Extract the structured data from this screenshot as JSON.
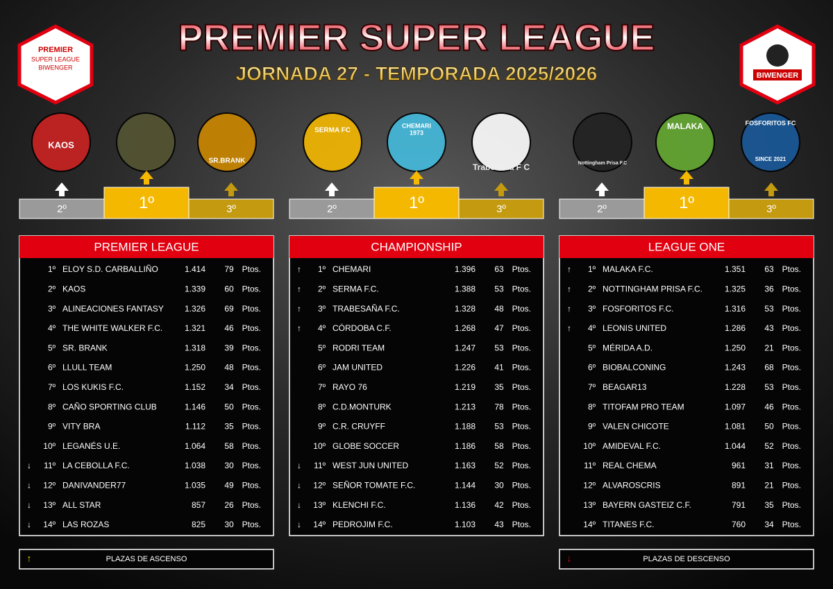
{
  "header": {
    "title": "PREMIER SUPER LEAGUE",
    "subtitle": "JORNADA 27 - TEMPORADA 2025/2026"
  },
  "corner_logos": {
    "left": [
      "PREMIER",
      "SUPER LEAGUE",
      "BIWENGER"
    ],
    "right": "BIWENGER"
  },
  "team_logos": [
    "KAOS",
    "SR.BRANK",
    "SERMA FC",
    "CHEMARI",
    "1973",
    "Trabesaña F C",
    "Nottingham Prisa F.C",
    "MALAKA",
    "FOSFORITOS FC",
    "SINCE 2021"
  ],
  "podium": [
    "2º",
    "1º",
    "3º"
  ],
  "unit": "Ptos.",
  "tables": [
    {
      "title": "PREMIER LEAGUE",
      "rows": [
        {
          "pos": "1º",
          "team": "ELOY S.D. CARBALLIÑO",
          "score": "1.414",
          "points": 79
        },
        {
          "pos": "2º",
          "team": "KAOS",
          "score": "1.339",
          "points": 60
        },
        {
          "pos": "3º",
          "team": "ALINEACIONES FANTASY",
          "score": "1.326",
          "points": 69
        },
        {
          "pos": "4º",
          "team": "THE WHITE WALKER F.C.",
          "score": "1.321",
          "points": 46
        },
        {
          "pos": "5º",
          "team": "SR. BRANK",
          "score": "1.318",
          "points": 39
        },
        {
          "pos": "6º",
          "team": "LLULL TEAM",
          "score": "1.250",
          "points": 48
        },
        {
          "pos": "7º",
          "team": "LOS KUKIS F.C.",
          "score": "1.152",
          "points": 34
        },
        {
          "pos": "8º",
          "team": "CAÑO SPORTING CLUB",
          "score": "1.146",
          "points": 50
        },
        {
          "pos": "9º",
          "team": "VITY BRA",
          "score": "1.112",
          "points": 35
        },
        {
          "pos": "10º",
          "team": "LEGANÉS U.E.",
          "score": "1.064",
          "points": 58
        },
        {
          "arrow": "↓",
          "pos": "11º",
          "team": "LA CEBOLLA F.C.",
          "score": "1.038",
          "points": 30
        },
        {
          "arrow": "↓",
          "pos": "12º",
          "team": "DANIVANDER77",
          "score": "1.035",
          "points": 49
        },
        {
          "arrow": "↓",
          "pos": "13º",
          "team": "ALL STAR",
          "score": "857",
          "points": 26
        },
        {
          "arrow": "↓",
          "pos": "14º",
          "team": "LAS ROZAS",
          "score": "825",
          "points": 30
        }
      ]
    },
    {
      "title": "CHAMPIONSHIP",
      "rows": [
        {
          "arrow": "↑",
          "pos": "1º",
          "team": "CHEMARI",
          "score": "1.396",
          "points": 63
        },
        {
          "arrow": "↑",
          "pos": "2º",
          "team": "SERMA F.C.",
          "score": "1.388",
          "points": 53
        },
        {
          "arrow": "↑",
          "pos": "3º",
          "team": "TRABESAÑA F.C.",
          "score": "1.328",
          "points": 48
        },
        {
          "arrow": "↑",
          "pos": "4º",
          "team": "CÓRDOBA C.F.",
          "score": "1.268",
          "points": 47
        },
        {
          "pos": "5º",
          "team": "RODRI TEAM",
          "score": "1.247",
          "points": 53
        },
        {
          "pos": "6º",
          "team": "JAM UNITED",
          "score": "1.226",
          "points": 41
        },
        {
          "pos": "7º",
          "team": "RAYO 76",
          "score": "1.219",
          "points": 35
        },
        {
          "pos": "8º",
          "team": "C.D.MONTURK",
          "score": "1.213",
          "points": 78
        },
        {
          "pos": "9º",
          "team": "C.R. CRUYFF",
          "score": "1.188",
          "points": 53
        },
        {
          "pos": "10º",
          "team": "GLOBE SOCCER",
          "score": "1.186",
          "points": 58
        },
        {
          "arrow": "↓",
          "pos": "11º",
          "team": "WEST JUN UNITED",
          "score": "1.163",
          "points": 52
        },
        {
          "arrow": "↓",
          "pos": "12º",
          "team": "SEÑOR TOMATE F.C.",
          "score": "1.144",
          "points": 30
        },
        {
          "arrow": "↓",
          "pos": "13º",
          "team": "KLENCHI F.C.",
          "score": "1.136",
          "points": 42
        },
        {
          "arrow": "↓",
          "pos": "14º",
          "team": "PEDROJIM F.C.",
          "score": "1.103",
          "points": 43
        }
      ]
    },
    {
      "title": "LEAGUE ONE",
      "rows": [
        {
          "arrow": "↑",
          "pos": "1º",
          "team": "MALAKA F.C.",
          "score": "1.351",
          "points": 63
        },
        {
          "arrow": "↑",
          "pos": "2º",
          "team": "NOTTINGHAM PRISA F.C.",
          "score": "1.325",
          "points": 36
        },
        {
          "arrow": "↑",
          "pos": "3º",
          "team": "FOSFORITOS F.C.",
          "score": "1.316",
          "points": 53
        },
        {
          "arrow": "↑",
          "pos": "4º",
          "team": "LEONIS UNITED",
          "score": "1.286",
          "points": 43
        },
        {
          "pos": "5º",
          "team": "MÉRIDA A.D.",
          "score": "1.250",
          "points": 21
        },
        {
          "pos": "6º",
          "team": "BIOBALCONING",
          "score": "1.243",
          "points": 68
        },
        {
          "pos": "7º",
          "team": "BEAGAR13",
          "score": "1.228",
          "points": 53
        },
        {
          "pos": "8º",
          "team": "TITOFAM PRO TEAM",
          "score": "1.097",
          "points": 46
        },
        {
          "pos": "9º",
          "team": "VALEN CHICOTE",
          "score": "1.081",
          "points": 50
        },
        {
          "pos": "10º",
          "team": "AMIDEVAL F.C.",
          "score": "1.044",
          "points": 52
        },
        {
          "pos": "11º",
          "team": "REAL CHEMA",
          "score": "961",
          "points": 31
        },
        {
          "pos": "12º",
          "team": "ALVAROSCRIS",
          "score": "891",
          "points": 21
        },
        {
          "pos": "13º",
          "team": "BAYERN GASTEIZ C.F.",
          "score": "791",
          "points": 35
        },
        {
          "pos": "14º",
          "team": "TITANES F.C.",
          "score": "760",
          "points": 34
        }
      ]
    }
  ],
  "legend": [
    {
      "arrow": "↑",
      "text": "PLAZAS DE ASCENSO"
    },
    {
      "arrow": "↓",
      "text": "PLAZAS DE DESCENSO"
    }
  ]
}
